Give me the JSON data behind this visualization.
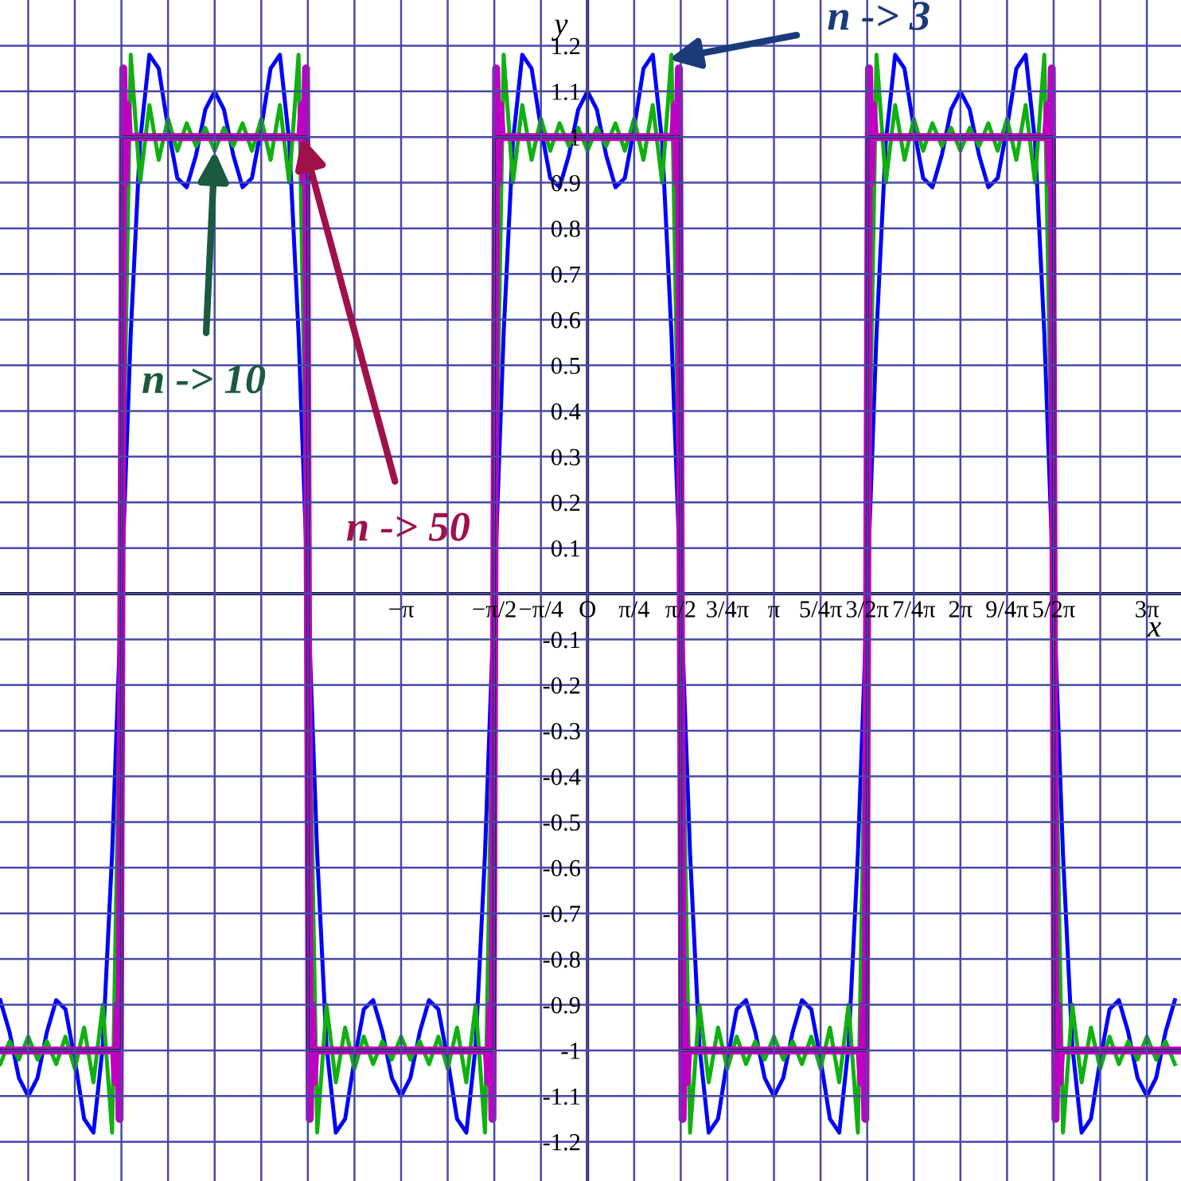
{
  "chart_data": {
    "type": "line",
    "xlabel": "x",
    "ylabel": "y",
    "xlim": [
      -9.9,
      10.0
    ],
    "ylim": [
      -1.286,
      1.3
    ],
    "xticks": [
      {
        "value": -9.4248,
        "label": null
      },
      {
        "value": -8.6394,
        "label": null
      },
      {
        "value": -7.854,
        "label": null
      },
      {
        "value": -7.0686,
        "label": null
      },
      {
        "value": -6.2832,
        "label": null
      },
      {
        "value": -5.4978,
        "label": null
      },
      {
        "value": -4.7124,
        "label": null
      },
      {
        "value": -3.927,
        "label": null
      },
      {
        "value": -3.1416,
        "label": "−π"
      },
      {
        "value": -2.3562,
        "label": null
      },
      {
        "value": -1.5708,
        "label": "−π/2"
      },
      {
        "value": -0.7854,
        "label": "−π/4"
      },
      {
        "value": 0,
        "label": "O"
      },
      {
        "value": 0.7854,
        "label": "π/4"
      },
      {
        "value": 1.5708,
        "label": "π/2"
      },
      {
        "value": 2.3562,
        "label": "3/4π"
      },
      {
        "value": 3.1416,
        "label": "π"
      },
      {
        "value": 3.927,
        "label": "5/4π"
      },
      {
        "value": 4.7124,
        "label": "3/2π"
      },
      {
        "value": 5.4978,
        "label": "7/4π"
      },
      {
        "value": 6.2832,
        "label": "2π"
      },
      {
        "value": 7.0686,
        "label": "9/4π"
      },
      {
        "value": 7.854,
        "label": "5/2π"
      },
      {
        "value": 8.6394,
        "label": null
      },
      {
        "value": 9.4248,
        "label": "3π"
      }
    ],
    "yticks": [
      -1.2,
      -1.1,
      -1,
      -0.9,
      -0.8,
      -0.7,
      -0.6,
      -0.5,
      -0.4,
      -0.3,
      -0.2,
      -0.1,
      {
        "value": 0,
        "label": null
      },
      0.1,
      0.2,
      0.3,
      0.4,
      0.5,
      0.6,
      0.7,
      0.8,
      0.9,
      1,
      1.1,
      1.2
    ],
    "grid": true,
    "x": [
      -9.896,
      -9.7389,
      -9.5819,
      -9.4248,
      -9.2677,
      -9.1106,
      -8.9535,
      -8.7965,
      -8.6394,
      -8.4823,
      -8.3252,
      -8.1681,
      -8.0111,
      -7.854,
      -7.6969,
      -7.5398,
      -7.3827,
      -7.2257,
      -7.0686,
      -6.9115,
      -6.7544,
      -6.5973,
      -6.4403,
      -6.2832,
      -6.1261,
      -5.969,
      -5.8119,
      -5.6549,
      -5.4978,
      -5.3407,
      -5.1836,
      -5.0265,
      -4.8695,
      -4.7124,
      -4.5553,
      -4.3982,
      -4.2412,
      -4.0841,
      -3.927,
      -3.7699,
      -3.6128,
      -3.4558,
      -3.2987,
      -3.1416,
      -2.9845,
      -2.8274,
      -2.6704,
      -2.5133,
      -2.3562,
      -2.1991,
      -2.042,
      -1.885,
      -1.7279,
      -1.5708,
      -1.4137,
      -1.2566,
      -1.0996,
      -0.9425,
      -0.7854,
      -0.6283,
      -0.4712,
      -0.3142,
      -0.1571,
      0,
      0.1571,
      0.3142,
      0.4712,
      0.6283,
      0.7854,
      0.9425,
      1.0996,
      1.2566,
      1.4137,
      1.5708,
      1.7279,
      1.885,
      2.042,
      2.1991,
      2.3562,
      2.5133,
      2.6704,
      2.8274,
      2.9845,
      3.1416,
      3.2987,
      3.4558,
      3.6128,
      3.7699,
      3.927,
      4.0841,
      4.2412,
      4.3982,
      4.5553,
      4.7124,
      4.8695,
      5.0265,
      5.1836,
      5.3407,
      5.4978,
      5.6549,
      5.8119,
      5.969,
      6.1261,
      6.2832,
      6.4403,
      6.5973,
      6.7544,
      6.9115,
      7.0686,
      7.2257,
      7.3827,
      7.5398,
      7.6969,
      7.854,
      8.0111,
      8.1681,
      8.3252,
      8.4823,
      8.6394,
      8.7965,
      8.9535,
      9.1106,
      9.2677,
      9.4248,
      9.5819,
      9.7389,
      9.896
    ],
    "series": [
      {
        "color": "#0000ff",
        "values": [
          -0.89,
          -0.96,
          -1.06,
          -1.1,
          -1.06,
          -0.96,
          -0.89,
          -0.91,
          -1.02,
          -1.15,
          -1.18,
          -0.99,
          -0.57,
          0,
          0.57,
          0.99,
          1.18,
          1.15,
          1.02,
          0.91,
          0.89,
          0.96,
          1.06,
          1.1,
          1.06,
          0.96,
          0.89,
          0.91,
          1.02,
          1.15,
          1.18,
          0.99,
          0.57,
          0,
          -0.57,
          -0.99,
          -1.18,
          -1.15,
          -1.02,
          -0.91,
          -0.89,
          -0.96,
          -1.06,
          -1.1,
          -1.06,
          -0.96,
          -0.89,
          -0.91,
          -1.02,
          -1.15,
          -1.18,
          -0.99,
          -0.57,
          0,
          0.57,
          0.99,
          1.18,
          1.15,
          1.02,
          0.91,
          0.89,
          0.96,
          1.06,
          1.1,
          1.06,
          0.96,
          0.89,
          0.91,
          1.02,
          1.15,
          1.18,
          0.99,
          0.57,
          0,
          -0.57,
          -0.99,
          -1.18,
          -1.15,
          -1.02,
          -0.91,
          -0.89,
          -0.96,
          -1.06,
          -1.1,
          -1.06,
          -0.96,
          -0.89,
          -0.91,
          -1.02,
          -1.15,
          -1.18,
          -0.99,
          -0.57,
          0,
          0.57,
          0.99,
          1.18,
          1.15,
          1.02,
          0.91,
          0.89,
          0.96,
          1.06,
          1.1,
          1.06,
          0.96,
          0.89,
          0.91,
          1.02,
          1.15,
          1.18,
          0.99,
          0.57,
          0,
          -0.57,
          -0.99,
          -1.18,
          -1.15,
          -1.02,
          -0.91,
          -0.89,
          -0.96,
          -1.06,
          -1.1,
          -1.06,
          -0.96,
          -0.89
        ]
      },
      {
        "color": "#10b010",
        "values": [
          -1.03,
          -0.98,
          -1.02,
          -0.97,
          -1.02,
          -0.98,
          -1.03,
          -0.97,
          -1.04,
          -0.95,
          -1.07,
          -0.9,
          -1.18,
          0,
          1.18,
          0.9,
          1.07,
          0.95,
          1.04,
          0.97,
          1.03,
          0.98,
          1.02,
          0.97,
          1.02,
          0.98,
          1.03,
          0.97,
          1.04,
          0.95,
          1.07,
          0.9,
          1.18,
          0,
          -1.18,
          -0.9,
          -1.07,
          -0.95,
          -1.04,
          -0.97,
          -1.03,
          -0.98,
          -1.02,
          -0.97,
          -1.02,
          -0.98,
          -1.03,
          -0.97,
          -1.04,
          -0.95,
          -1.07,
          -0.9,
          -1.18,
          0,
          1.18,
          0.9,
          1.07,
          0.95,
          1.04,
          0.97,
          1.03,
          0.98,
          1.02,
          0.97,
          1.02,
          0.98,
          1.03,
          0.97,
          1.04,
          0.95,
          1.07,
          0.9,
          1.18,
          0,
          -1.18,
          -0.9,
          -1.07,
          -0.95,
          -1.04,
          -0.97,
          -1.03,
          -0.98,
          -1.02,
          -0.97,
          -1.02,
          -0.98,
          -1.03,
          -0.97,
          -1.04,
          -0.95,
          -1.07,
          -0.9,
          -1.18,
          0,
          1.18,
          0.9,
          1.07,
          0.95,
          1.04,
          0.97,
          1.03,
          0.98,
          1.02,
          0.97,
          1.02,
          0.98,
          1.03,
          0.97,
          1.04,
          0.95,
          1.07,
          0.9,
          1.18,
          0,
          -1.18,
          -0.9,
          -1.07,
          -0.95,
          -1.04,
          -0.97,
          -1.03,
          -0.98,
          -1.02,
          -0.97,
          -1.02,
          -0.98,
          -1.03
        ]
      },
      {
        "color": "#000000",
        "x": [
          -9.9,
          -7.854,
          -7.854,
          -4.7124,
          -4.7124,
          -1.5708,
          -1.5708,
          1.5708,
          1.5708,
          4.7124,
          4.7124,
          7.854,
          7.854,
          10.0
        ],
        "values": [
          -1,
          -1,
          1,
          1,
          -1,
          -1,
          1,
          1,
          -1,
          -1,
          1,
          1,
          -1,
          -1
        ]
      },
      {
        "color": "#c000c0",
        "x": [
          -9.9,
          -7.9797,
          -7.9482,
          -7.9168,
          -7.8854,
          -7.854,
          -7.8226,
          -7.7912,
          -7.7598,
          -7.7283,
          -4.8381,
          -4.8066,
          -4.7752,
          -4.7438,
          -4.7124,
          -4.681,
          -4.6496,
          -4.6182,
          -4.5867,
          -1.6965,
          -1.665,
          -1.6336,
          -1.6022,
          -1.5708,
          -1.5394,
          -1.508,
          -1.4766,
          -1.4451,
          1.4451,
          1.4766,
          1.508,
          1.5394,
          1.5708,
          1.6022,
          1.6336,
          1.665,
          1.6965,
          4.5867,
          4.6182,
          4.6496,
          4.681,
          4.7124,
          4.7438,
          4.7752,
          4.8066,
          4.8381,
          7.7283,
          7.7598,
          7.7912,
          7.8226,
          7.854,
          7.8854,
          7.9168,
          7.9482,
          7.9797,
          10.0
        ],
        "values": [
          -1,
          -1,
          -1.07,
          -0.9,
          -1.15,
          0,
          1.15,
          0.9,
          1.07,
          1,
          1,
          1.07,
          0.9,
          1.15,
          0,
          -1.15,
          -0.9,
          -1.07,
          -1,
          -1,
          -1.07,
          -0.9,
          -1.15,
          0,
          1.15,
          0.9,
          1.07,
          1,
          1,
          1.07,
          0.9,
          1.15,
          0,
          -1.15,
          -0.9,
          -1.07,
          -1,
          -1,
          -1.07,
          -0.9,
          -1.15,
          0,
          1.15,
          0.9,
          1.07,
          1,
          1,
          1.07,
          0.9,
          1.15,
          0,
          -1.15,
          -0.9,
          -1.07,
          -1,
          -1
        ]
      }
    ],
    "annotations": [
      {
        "text": "n -> 3",
        "x": 1.37,
        "y": 1.17
      },
      {
        "text": "n -> 10",
        "x": -6.28,
        "y": 0.97
      },
      {
        "text": "n -> 50",
        "x": -4.81,
        "y": 1.0
      }
    ]
  }
}
